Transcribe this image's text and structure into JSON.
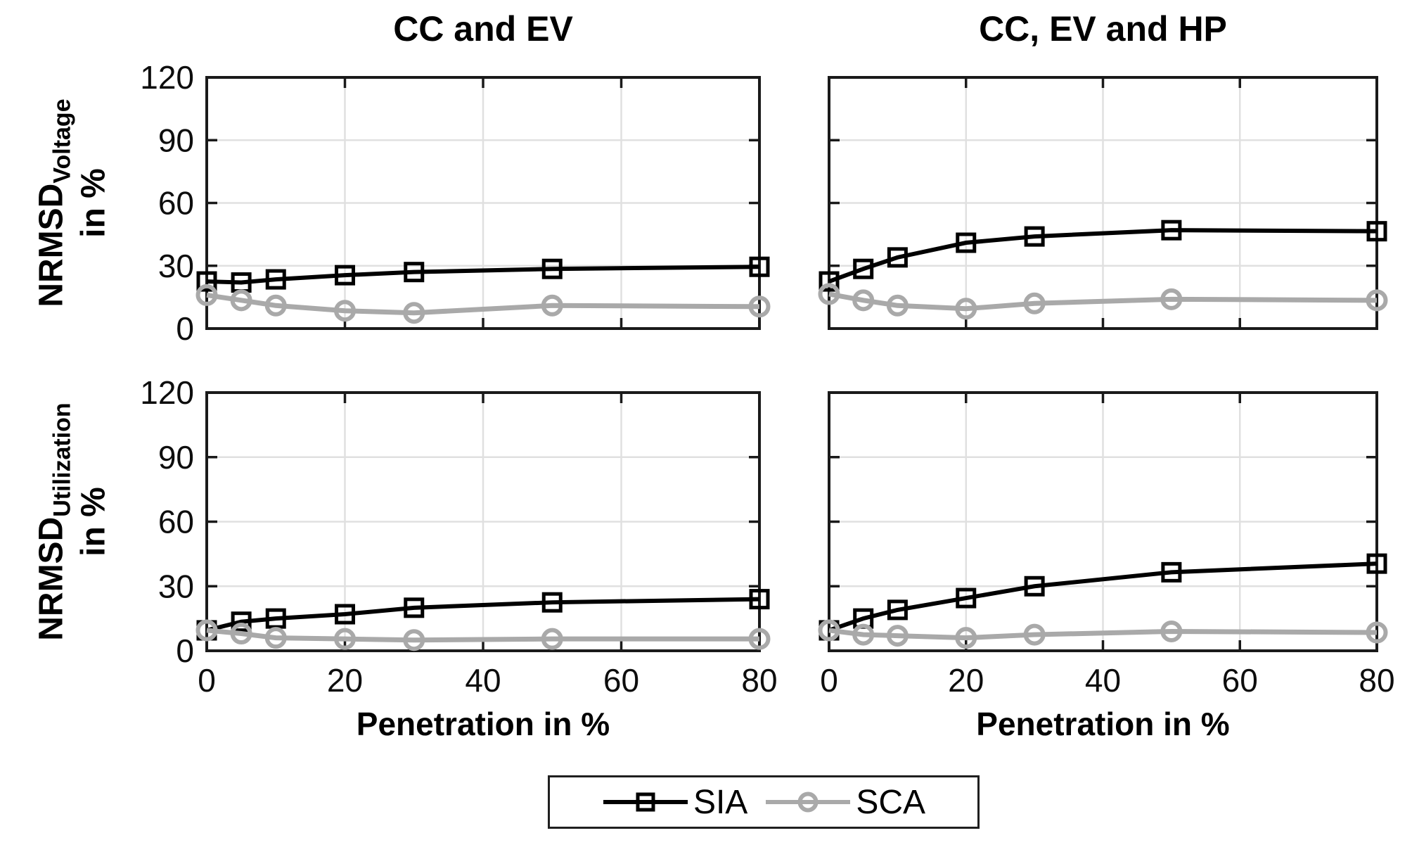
{
  "figure": {
    "background": "#ffffff",
    "axis_color": "#1a1a1a",
    "grid_color": "#e0e0e0",
    "series_colors": {
      "SIA": "#000000",
      "SCA": "#a9a9a9"
    }
  },
  "column_titles": [
    "CC and EV",
    "CC, EV and HP"
  ],
  "row_labels": [
    {
      "main": "NRMSD",
      "sub": "Voltage",
      "line2": "in %"
    },
    {
      "main": "NRMSD",
      "sub": "Utilization",
      "line2": "in %"
    }
  ],
  "x_axis": {
    "label": "Penetration in %",
    "ticks": [
      0,
      20,
      40,
      60,
      80
    ],
    "lim": [
      0,
      80
    ]
  },
  "y_axis": {
    "ticks": [
      0,
      30,
      60,
      90,
      120
    ],
    "lim": [
      0,
      120
    ]
  },
  "legend": {
    "items": [
      {
        "label": "SIA",
        "marker": "square",
        "color": "#000000"
      },
      {
        "label": "SCA",
        "marker": "circle",
        "color": "#a9a9a9"
      }
    ]
  },
  "chart_data": [
    {
      "id": "voltage-cc-ev",
      "type": "line",
      "row": 0,
      "col": 0,
      "title": "CC and EV",
      "ylabel": "NRMSD_Voltage in %",
      "xlabel": "Penetration in %",
      "x": [
        0,
        5,
        10,
        20,
        30,
        50,
        80
      ],
      "series": [
        {
          "name": "SIA",
          "values": [
            22.5,
            22,
            23.5,
            25.5,
            27,
            28.5,
            29.5
          ]
        },
        {
          "name": "SCA",
          "values": [
            16,
            13.5,
            11,
            8.5,
            7.5,
            11,
            10.5
          ]
        }
      ],
      "xlim": [
        0,
        80
      ],
      "ylim": [
        0,
        120
      ],
      "grid": true,
      "show_x_ticklabels": false,
      "show_y_ticklabels": true
    },
    {
      "id": "voltage-cc-ev-hp",
      "type": "line",
      "row": 0,
      "col": 1,
      "title": "CC, EV and HP",
      "ylabel": "NRMSD_Voltage in %",
      "xlabel": "Penetration in %",
      "x": [
        0,
        5,
        10,
        20,
        30,
        50,
        80
      ],
      "series": [
        {
          "name": "SIA",
          "values": [
            22.5,
            28.5,
            34,
            41,
            44,
            47,
            46.5
          ]
        },
        {
          "name": "SCA",
          "values": [
            16.5,
            13.5,
            11,
            9.5,
            12,
            14,
            13.5
          ]
        }
      ],
      "xlim": [
        0,
        80
      ],
      "ylim": [
        0,
        120
      ],
      "grid": true,
      "show_x_ticklabels": false,
      "show_y_ticklabels": false
    },
    {
      "id": "utilization-cc-ev",
      "type": "line",
      "row": 1,
      "col": 0,
      "title": "CC and EV",
      "ylabel": "NRMSD_Utilization in %",
      "xlabel": "Penetration in %",
      "x": [
        0,
        5,
        10,
        20,
        30,
        50,
        80
      ],
      "series": [
        {
          "name": "SIA",
          "values": [
            9.5,
            13.5,
            15,
            17,
            20,
            22.5,
            24
          ]
        },
        {
          "name": "SCA",
          "values": [
            9.5,
            8,
            6,
            5.5,
            5,
            5.5,
            5.5
          ]
        }
      ],
      "xlim": [
        0,
        80
      ],
      "ylim": [
        0,
        120
      ],
      "grid": true,
      "show_x_ticklabels": true,
      "show_y_ticklabels": true
    },
    {
      "id": "utilization-cc-ev-hp",
      "type": "line",
      "row": 1,
      "col": 1,
      "title": "CC, EV and HP",
      "ylabel": "NRMSD_Utilization in %",
      "xlabel": "Penetration in %",
      "x": [
        0,
        5,
        10,
        20,
        30,
        50,
        80
      ],
      "series": [
        {
          "name": "SIA",
          "values": [
            9.5,
            15,
            19,
            24.5,
            30,
            36.5,
            40.5
          ]
        },
        {
          "name": "SCA",
          "values": [
            9.5,
            7.5,
            7,
            6,
            7.5,
            9,
            8.5
          ]
        }
      ],
      "xlim": [
        0,
        80
      ],
      "ylim": [
        0,
        120
      ],
      "grid": true,
      "show_x_ticklabels": true,
      "show_y_ticklabels": false
    }
  ]
}
